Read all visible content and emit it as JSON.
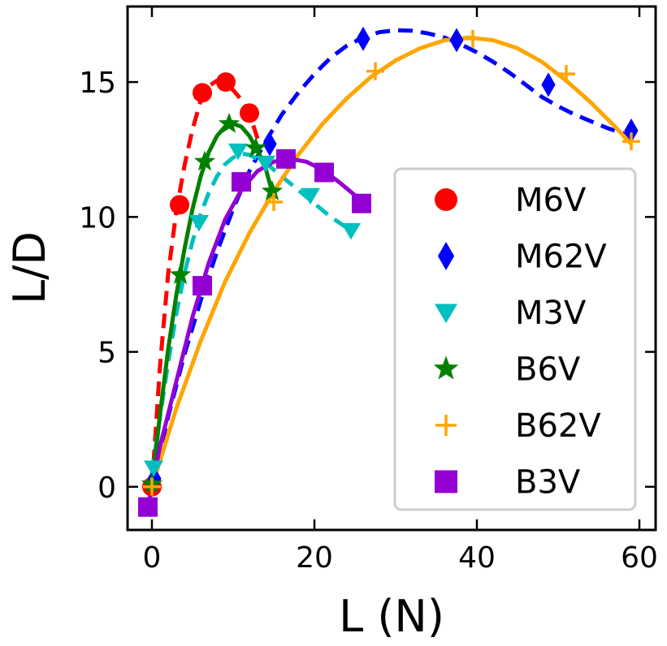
{
  "chart_data": {
    "type": "line",
    "xlabel": "L (N)",
    "ylabel": "L/D",
    "xlim": [
      -3,
      62
    ],
    "ylim": [
      -1.6,
      17.8
    ],
    "xticks": [
      0,
      20,
      40,
      60
    ],
    "yticks": [
      0,
      5,
      10,
      15
    ],
    "legend_position": "center-right",
    "series": [
      {
        "name": "M6V",
        "color": "#ff0000",
        "marker": "circle",
        "line": "dashed",
        "points": [
          [
            0,
            0
          ],
          [
            3.4,
            10.45
          ],
          [
            6.2,
            14.6
          ],
          [
            9.1,
            15.0
          ],
          [
            12.0,
            13.85
          ]
        ],
        "curve": [
          [
            0,
            0
          ],
          [
            1,
            4.5
          ],
          [
            2,
            7.9
          ],
          [
            3,
            10.2
          ],
          [
            4,
            11.9
          ],
          [
            5,
            13.25
          ],
          [
            6,
            14.3
          ],
          [
            7,
            14.85
          ],
          [
            8,
            15.05
          ],
          [
            9,
            15.0
          ],
          [
            10,
            14.7
          ],
          [
            11,
            14.35
          ],
          [
            12,
            13.85
          ],
          [
            13,
            12.9
          ]
        ]
      },
      {
        "name": "M62V",
        "color": "#0000ff",
        "marker": "diamond",
        "line": "dashed",
        "points": [
          [
            0.3,
            0.3
          ],
          [
            14.5,
            12.7
          ],
          [
            26.0,
            16.6
          ],
          [
            37.5,
            16.55
          ],
          [
            48.8,
            14.9
          ],
          [
            59.0,
            13.2
          ]
        ],
        "curve": [
          [
            0,
            0
          ],
          [
            2,
            2.6
          ],
          [
            4,
            4.9
          ],
          [
            6,
            6.9
          ],
          [
            8,
            8.7
          ],
          [
            10,
            10.3
          ],
          [
            12,
            11.7
          ],
          [
            14,
            12.8
          ],
          [
            16,
            13.8
          ],
          [
            18,
            14.6
          ],
          [
            20,
            15.3
          ],
          [
            22,
            15.9
          ],
          [
            24,
            16.35
          ],
          [
            26,
            16.65
          ],
          [
            28,
            16.85
          ],
          [
            30,
            16.92
          ],
          [
            32,
            16.9
          ],
          [
            34,
            16.8
          ],
          [
            36,
            16.65
          ],
          [
            38,
            16.4
          ],
          [
            40,
            16.1
          ],
          [
            42,
            15.75
          ],
          [
            44,
            15.35
          ],
          [
            46,
            14.9
          ],
          [
            48,
            14.45
          ],
          [
            50,
            14.1
          ],
          [
            52,
            13.8
          ],
          [
            54,
            13.55
          ],
          [
            56,
            13.3
          ],
          [
            58,
            13.1
          ],
          [
            59,
            12.95
          ]
        ]
      },
      {
        "name": "M3V",
        "color": "#00bfbf",
        "marker": "triangle-down",
        "line": "dashed",
        "points": [
          [
            0.2,
            0.7
          ],
          [
            5.8,
            9.8
          ],
          [
            10.6,
            12.45
          ],
          [
            14.0,
            12.0
          ],
          [
            19.5,
            10.8
          ],
          [
            24.5,
            9.5
          ]
        ],
        "curve": [
          [
            0,
            0.5
          ],
          [
            1,
            2.6
          ],
          [
            2,
            4.6
          ],
          [
            3,
            6.4
          ],
          [
            4,
            7.9
          ],
          [
            5,
            9.1
          ],
          [
            6,
            10.1
          ],
          [
            7,
            10.9
          ],
          [
            8,
            11.5
          ],
          [
            9,
            11.95
          ],
          [
            10,
            12.2
          ],
          [
            11,
            12.35
          ],
          [
            12,
            12.3
          ],
          [
            14,
            12.0
          ],
          [
            16,
            11.5
          ],
          [
            18,
            11.0
          ],
          [
            20,
            10.5
          ],
          [
            22,
            10.0
          ],
          [
            24,
            9.6
          ],
          [
            24.5,
            9.5
          ]
        ]
      },
      {
        "name": "B6V",
        "color": "#008000",
        "marker": "star",
        "line": "solid",
        "points": [
          [
            0,
            0.1
          ],
          [
            3.5,
            7.85
          ],
          [
            6.5,
            12.05
          ],
          [
            9.5,
            13.45
          ],
          [
            12.8,
            12.55
          ],
          [
            14.8,
            10.95
          ]
        ],
        "curve": [
          [
            0,
            0
          ],
          [
            1,
            2.7
          ],
          [
            2,
            5.1
          ],
          [
            3,
            7.1
          ],
          [
            4,
            8.8
          ],
          [
            5,
            10.3
          ],
          [
            6,
            11.5
          ],
          [
            7,
            12.4
          ],
          [
            8,
            13.0
          ],
          [
            9,
            13.35
          ],
          [
            10,
            13.45
          ],
          [
            11,
            13.35
          ],
          [
            12,
            13.0
          ],
          [
            13,
            12.45
          ],
          [
            14,
            11.8
          ],
          [
            15,
            10.7
          ]
        ]
      },
      {
        "name": "B62V",
        "color": "#ffa500",
        "marker": "plus",
        "line": "solid",
        "points": [
          [
            0,
            0
          ],
          [
            15.0,
            10.55
          ],
          [
            27.5,
            15.4
          ],
          [
            39.5,
            16.6
          ],
          [
            51.0,
            15.3
          ],
          [
            59.0,
            12.8
          ]
        ],
        "curve": [
          [
            0,
            0
          ],
          [
            3,
            2.9
          ],
          [
            6,
            5.4
          ],
          [
            9,
            7.6
          ],
          [
            12,
            9.4
          ],
          [
            15,
            10.95
          ],
          [
            18,
            12.3
          ],
          [
            21,
            13.45
          ],
          [
            24,
            14.4
          ],
          [
            27,
            15.2
          ],
          [
            30,
            15.8
          ],
          [
            33,
            16.25
          ],
          [
            36,
            16.55
          ],
          [
            39,
            16.65
          ],
          [
            42,
            16.55
          ],
          [
            45,
            16.25
          ],
          [
            48,
            15.75
          ],
          [
            51,
            15.05
          ],
          [
            54,
            14.25
          ],
          [
            57,
            13.35
          ],
          [
            59,
            12.7
          ]
        ]
      },
      {
        "name": "B3V",
        "color": "#9400d3",
        "marker": "square",
        "line": "solid",
        "points": [
          [
            -0.5,
            -0.75
          ],
          [
            6.2,
            7.45
          ],
          [
            11.0,
            11.3
          ],
          [
            16.5,
            12.15
          ],
          [
            21.2,
            11.65
          ],
          [
            25.8,
            10.5
          ]
        ],
        "curve": [
          [
            -0.5,
            -0.75
          ],
          [
            1,
            1.5
          ],
          [
            3,
            3.9
          ],
          [
            5,
            6.3
          ],
          [
            7,
            8.3
          ],
          [
            9,
            9.9
          ],
          [
            11,
            11.0
          ],
          [
            13,
            11.7
          ],
          [
            15,
            12.05
          ],
          [
            17,
            12.15
          ],
          [
            19,
            12.05
          ],
          [
            21,
            11.75
          ],
          [
            23,
            11.3
          ],
          [
            25,
            10.8
          ],
          [
            25.8,
            10.5
          ]
        ]
      }
    ]
  }
}
